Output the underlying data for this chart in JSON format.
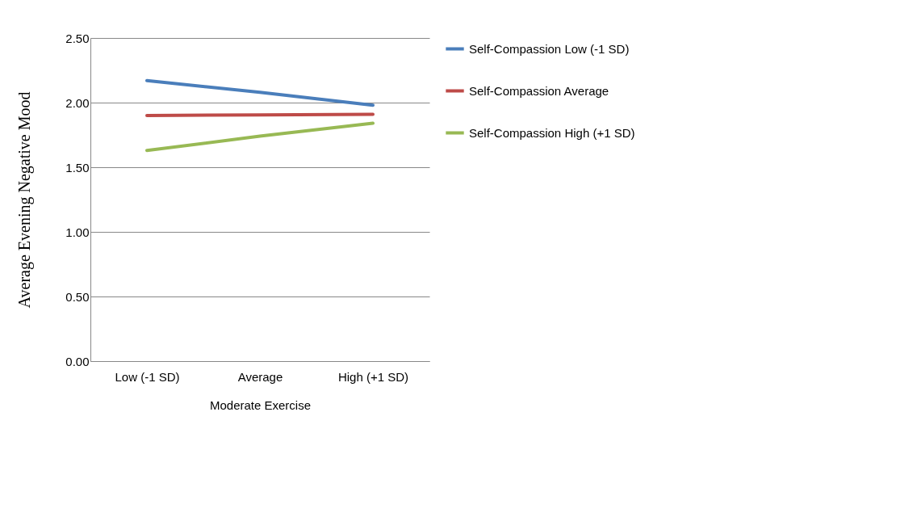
{
  "chart_data": {
    "type": "line",
    "xlabel": "Moderate Exercise",
    "ylabel": "Average Evening Negative Mood",
    "categories": [
      "Low (-1 SD)",
      "Average",
      "High (+1 SD)"
    ],
    "series": [
      {
        "name": "Self-Compassion Low (-1 SD)",
        "color": "#4a7ebb",
        "values": [
          2.17,
          2.08,
          1.98
        ]
      },
      {
        "name": "Self-Compassion Average",
        "color": "#be4b48",
        "values": [
          1.9,
          1.905,
          1.91
        ]
      },
      {
        "name": "Self-Compassion High (+1 SD)",
        "color": "#98b954",
        "values": [
          1.63,
          1.74,
          1.84
        ]
      }
    ],
    "ylim": [
      0,
      2.5
    ],
    "yticks": [
      {
        "value": 0,
        "label": "0.00"
      },
      {
        "value": 0.5,
        "label": "0.50"
      },
      {
        "value": 1,
        "label": "1.00"
      },
      {
        "value": 1.5,
        "label": "1.50"
      },
      {
        "value": 2,
        "label": "2.00"
      },
      {
        "value": 2.5,
        "label": "2.50"
      }
    ],
    "grid": "y",
    "legend": "right",
    "marker": "none",
    "line_style": "solid"
  }
}
